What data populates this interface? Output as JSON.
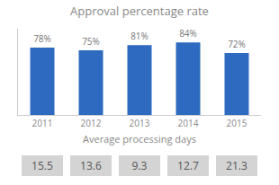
{
  "chart_data": {
    "type": "bar",
    "title": "Approval percentage rate",
    "subtitle": "Average processing days",
    "categories": [
      "2011",
      "2012",
      "2013",
      "2014",
      "2015"
    ],
    "values": [
      78,
      75,
      81,
      84,
      72
    ],
    "value_labels": [
      "78%",
      "75%",
      "81%",
      "84%",
      "72%"
    ],
    "data_labels": true,
    "color": "#2e6abf",
    "ylim": [
      0,
      100
    ],
    "tick_labels": "x",
    "grid": false,
    "annotations": [
      "15.5",
      "13.6",
      "9.3",
      "12.7",
      "21.3"
    ]
  }
}
